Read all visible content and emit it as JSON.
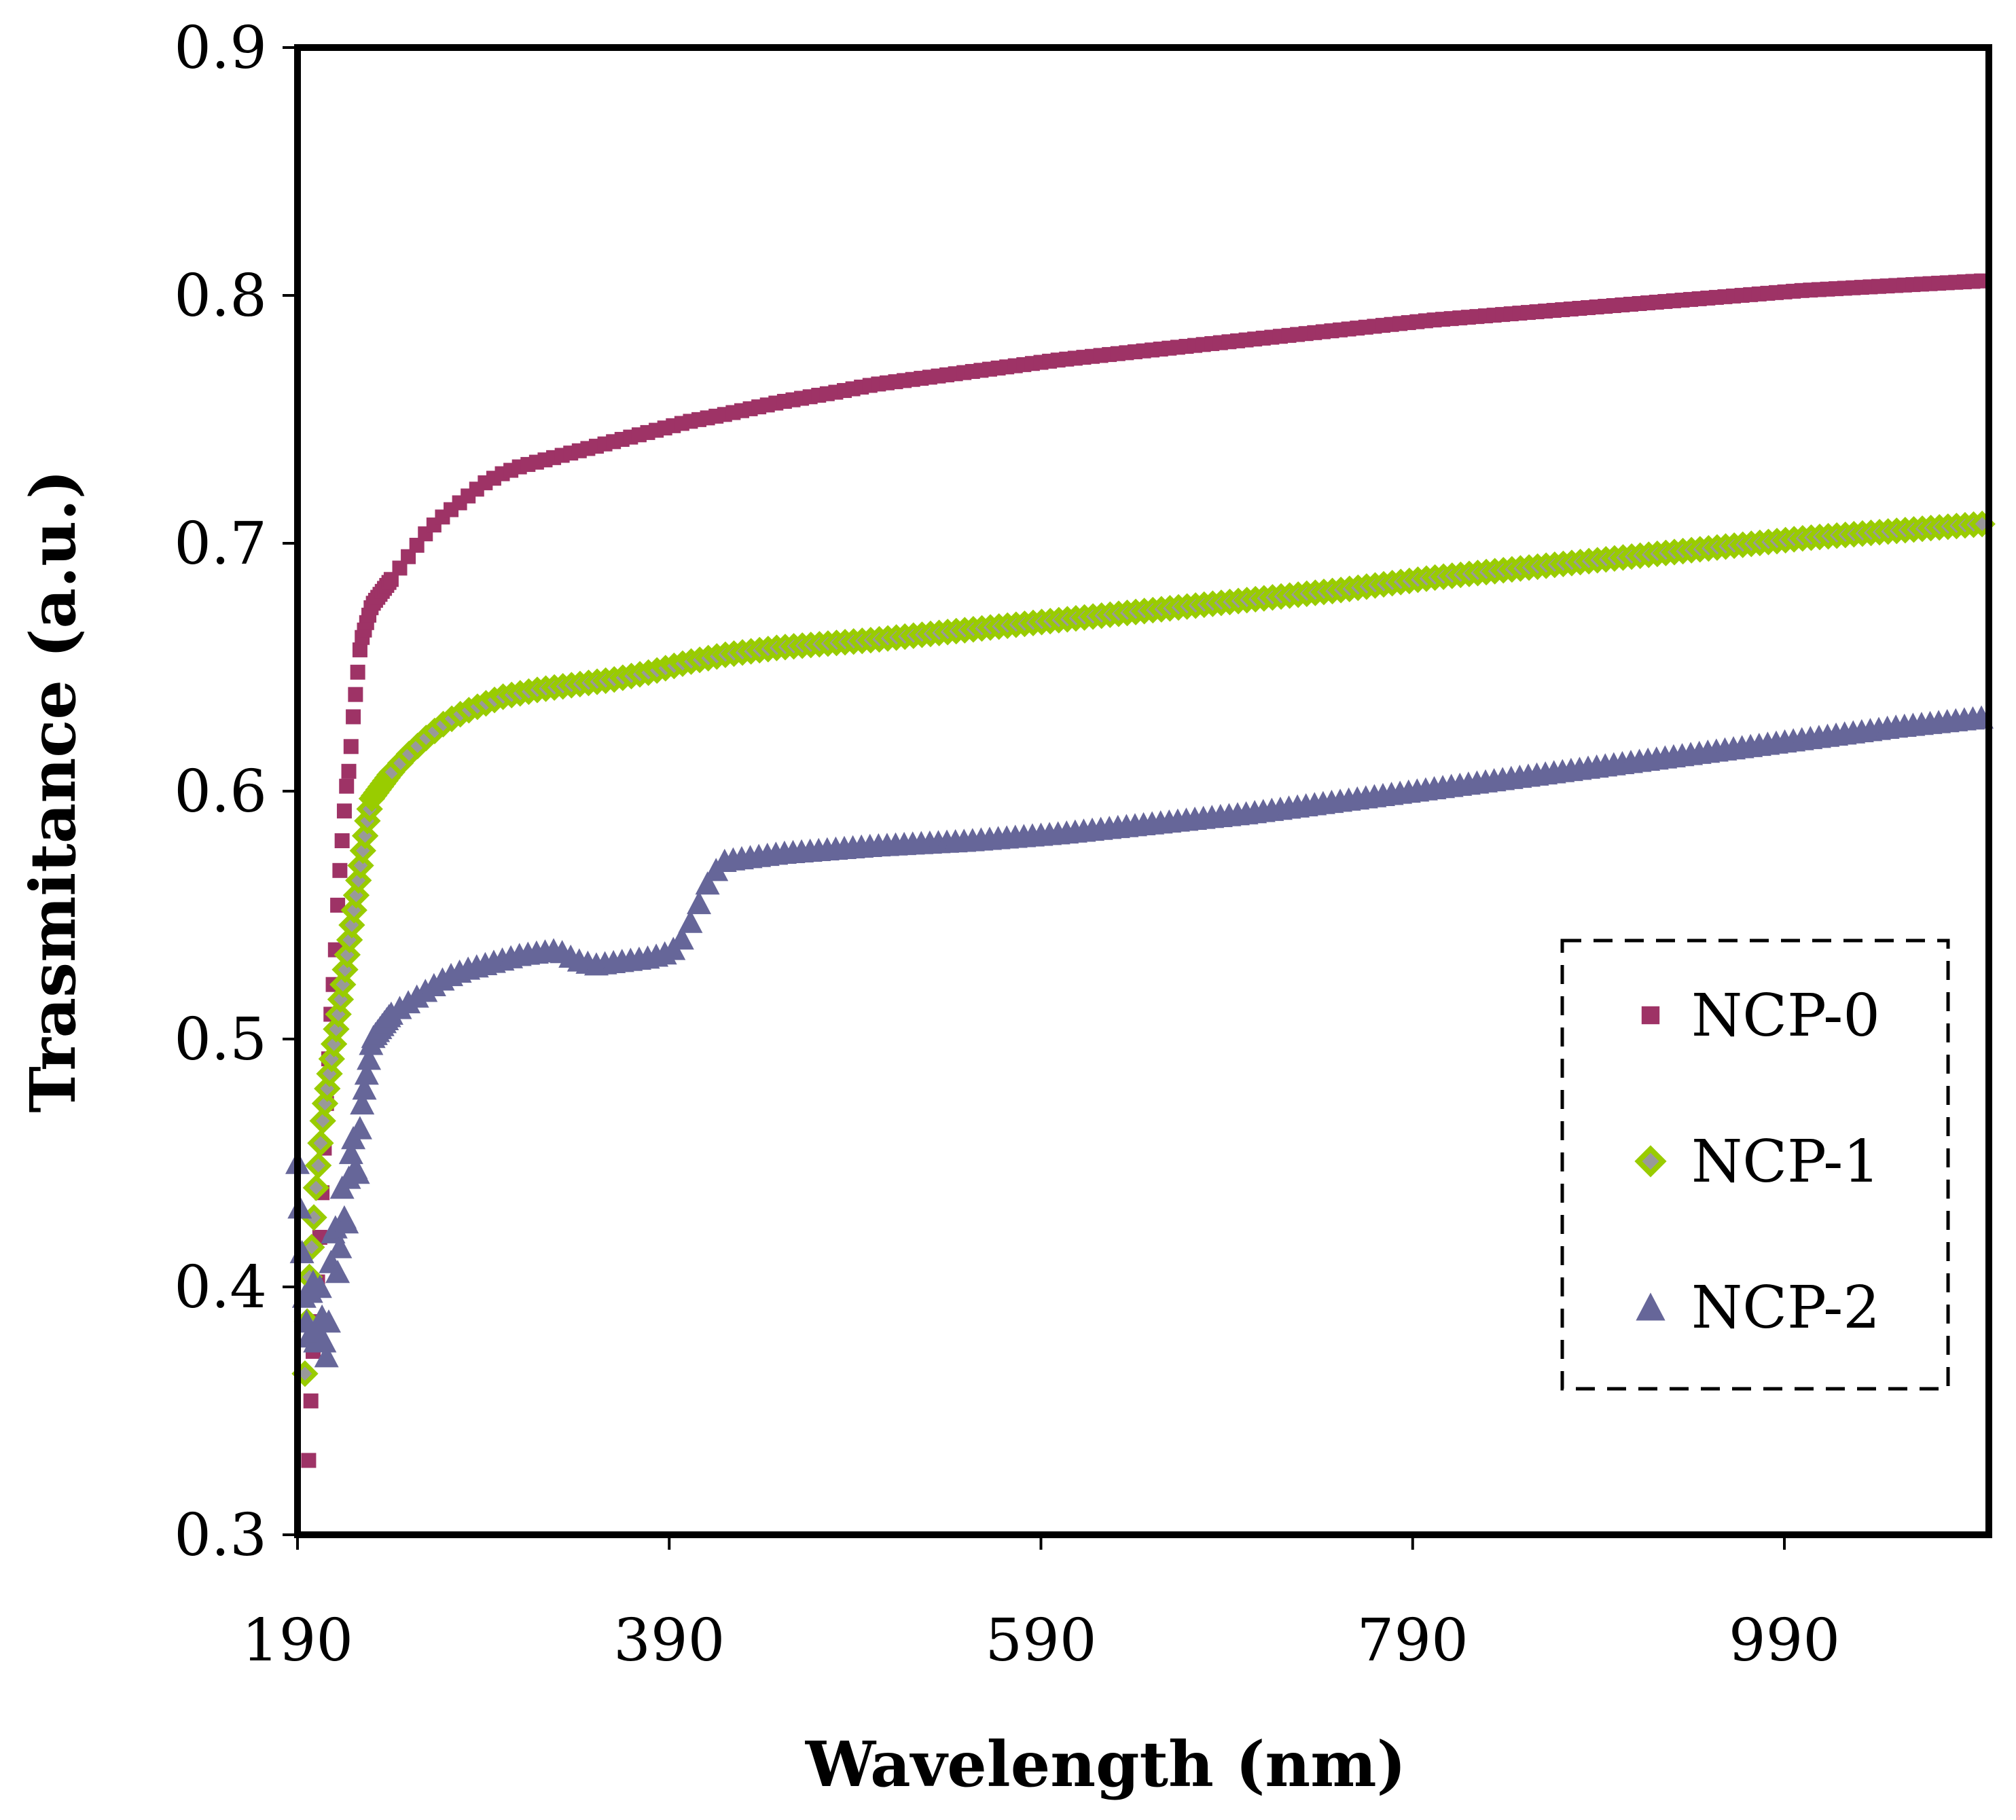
{
  "chart_data": {
    "type": "scatter",
    "title": "",
    "xlabel": "Wavelength (nm)",
    "ylabel": "Trasmitance (a.u.)",
    "xlim": [
      190,
      1100
    ],
    "ylim": [
      0.3,
      0.9
    ],
    "xticks": [
      190,
      390,
      590,
      790,
      990
    ],
    "xtick_labels": [
      "190",
      "390",
      "590",
      "790",
      "990"
    ],
    "yticks": [
      0.3,
      0.4,
      0.5,
      0.6,
      0.7,
      0.8,
      0.9
    ],
    "ytick_labels": [
      "0.3",
      "0.4",
      "0.5",
      "0.6",
      "0.7",
      "0.8",
      "0.9"
    ],
    "grid": false,
    "legend_position": "right",
    "series": [
      {
        "name": "NCP-0",
        "marker": "square",
        "color": "#9e3366",
        "x": [
          196,
          198,
          200,
          202,
          204,
          206,
          208,
          210,
          212,
          214,
          216,
          218,
          220,
          222,
          224,
          226,
          228,
          230,
          240,
          250,
          260,
          270,
          280,
          290,
          300,
          310,
          320,
          330,
          340,
          360,
          380,
          400,
          420,
          450,
          480,
          500,
          550,
          600,
          650,
          700,
          750,
          800,
          850,
          900,
          950,
          1000,
          1050,
          1100
        ],
        "y": [
          0.33,
          0.37,
          0.39,
          0.42,
          0.45,
          0.48,
          0.51,
          0.53,
          0.56,
          0.58,
          0.6,
          0.61,
          0.63,
          0.645,
          0.66,
          0.665,
          0.67,
          0.675,
          0.685,
          0.695,
          0.705,
          0.712,
          0.718,
          0.724,
          0.728,
          0.731,
          0.733,
          0.735,
          0.737,
          0.741,
          0.745,
          0.749,
          0.752,
          0.757,
          0.761,
          0.764,
          0.769,
          0.774,
          0.778,
          0.782,
          0.786,
          0.79,
          0.793,
          0.796,
          0.799,
          0.802,
          0.804,
          0.806
        ]
      },
      {
        "name": "NCP-1",
        "marker": "diamond",
        "color": "#99cc00",
        "x": [
          194,
          196,
          198,
          200,
          202,
          204,
          206,
          208,
          210,
          212,
          214,
          216,
          218,
          220,
          222,
          224,
          226,
          228,
          230,
          240,
          250,
          260,
          270,
          280,
          290,
          300,
          320,
          340,
          360,
          380,
          400,
          420,
          450,
          500,
          550,
          600,
          650,
          700,
          750,
          800,
          850,
          900,
          950,
          1000,
          1050,
          1100
        ],
        "y": [
          0.365,
          0.4,
          0.42,
          0.44,
          0.455,
          0.47,
          0.48,
          0.49,
          0.5,
          0.51,
          0.52,
          0.53,
          0.54,
          0.55,
          0.56,
          0.57,
          0.58,
          0.59,
          0.597,
          0.607,
          0.615,
          0.622,
          0.628,
          0.632,
          0.635,
          0.638,
          0.641,
          0.643,
          0.645,
          0.648,
          0.652,
          0.655,
          0.658,
          0.661,
          0.665,
          0.669,
          0.673,
          0.677,
          0.681,
          0.686,
          0.69,
          0.694,
          0.698,
          0.702,
          0.705,
          0.708
        ]
      },
      {
        "name": "NCP-2",
        "marker": "triangle",
        "color": "#666699",
        "x": [
          190,
          192,
          194,
          196,
          198,
          200,
          202,
          204,
          206,
          208,
          210,
          212,
          214,
          216,
          218,
          220,
          222,
          224,
          226,
          228,
          230,
          240,
          250,
          260,
          270,
          280,
          290,
          300,
          310,
          320,
          330,
          340,
          350,
          360,
          370,
          380,
          390,
          395,
          400,
          405,
          410,
          415,
          420,
          430,
          450,
          500,
          550,
          600,
          650,
          700,
          750,
          800,
          850,
          900,
          950,
          1000,
          1050,
          1100
        ],
        "y": [
          0.45,
          0.42,
          0.39,
          0.38,
          0.41,
          0.37,
          0.4,
          0.38,
          0.37,
          0.41,
          0.43,
          0.4,
          0.44,
          0.42,
          0.45,
          0.46,
          0.44,
          0.47,
          0.48,
          0.49,
          0.5,
          0.51,
          0.515,
          0.52,
          0.525,
          0.528,
          0.53,
          0.532,
          0.534,
          0.535,
          0.536,
          0.532,
          0.53,
          0.531,
          0.532,
          0.533,
          0.535,
          0.538,
          0.545,
          0.553,
          0.562,
          0.568,
          0.572,
          0.573,
          0.575,
          0.578,
          0.58,
          0.583,
          0.587,
          0.591,
          0.596,
          0.601,
          0.606,
          0.611,
          0.616,
          0.621,
          0.626,
          0.63
        ]
      }
    ]
  }
}
